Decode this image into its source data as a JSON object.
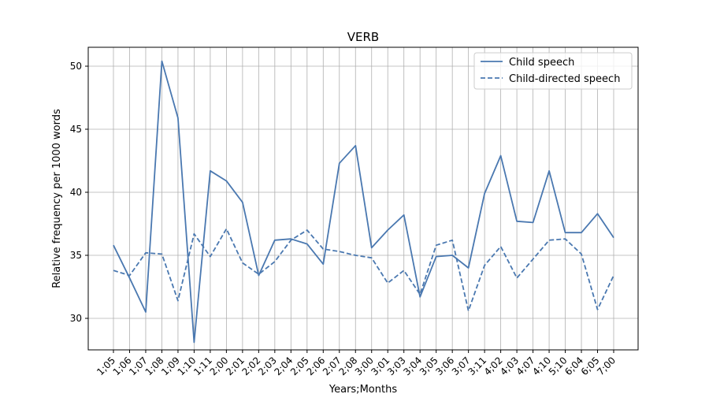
{
  "chart_data": {
    "type": "line",
    "title": "VERB",
    "xlabel": "Years;Months",
    "ylabel": "Relative frequency per 1000 words",
    "categories": [
      "1;05",
      "1;06",
      "1;07",
      "1;08",
      "1;09",
      "1;10",
      "1;11",
      "2;00",
      "2;01",
      "2;02",
      "2;03",
      "2;04",
      "2;05",
      "2;06",
      "2;07",
      "2;08",
      "3;00",
      "3;01",
      "3;03",
      "3;04",
      "3;05",
      "3;06",
      "3;07",
      "3;11",
      "4;02",
      "4;03",
      "4;07",
      "4;10",
      "5;10",
      "6;04",
      "6;05",
      "7;00"
    ],
    "ylim": [
      27.5,
      51.5
    ],
    "yticks": [
      30,
      35,
      40,
      45,
      50
    ],
    "grid": true,
    "legend_position": "top-right",
    "series": [
      {
        "name": "Child speech",
        "line_style": "solid",
        "color": "#4a78b0",
        "values": [
          35.8,
          33.2,
          30.5,
          50.4,
          45.9,
          28.1,
          41.7,
          40.9,
          39.2,
          33.4,
          36.2,
          36.3,
          35.9,
          34.3,
          42.3,
          43.7,
          35.6,
          37.0,
          38.2,
          31.7,
          34.9,
          35.0,
          34.0,
          39.9,
          42.9,
          37.7,
          37.6,
          41.7,
          36.8,
          36.8,
          38.3,
          36.4
        ]
      },
      {
        "name": "Child-directed speech",
        "line_style": "dashed",
        "color": "#4a78b0",
        "values": [
          33.8,
          33.4,
          35.2,
          35.1,
          31.4,
          36.7,
          34.9,
          37.1,
          34.4,
          33.5,
          34.5,
          36.2,
          37.0,
          35.5,
          35.3,
          35.0,
          34.8,
          32.8,
          33.8,
          31.9,
          35.8,
          36.2,
          30.6,
          34.2,
          35.7,
          33.2,
          34.7,
          36.2,
          36.3,
          35.1,
          30.7,
          33.4
        ]
      }
    ]
  }
}
